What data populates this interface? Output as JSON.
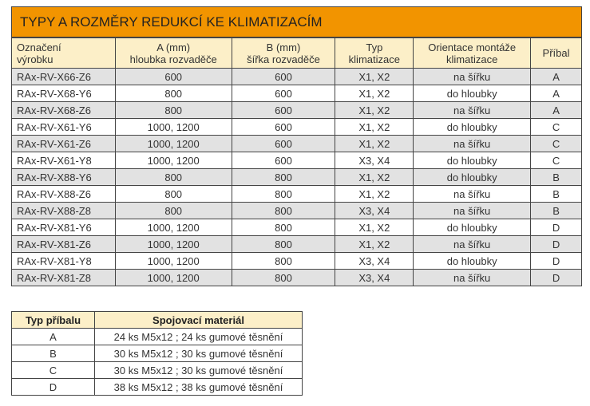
{
  "title": "TYPY A ROZMĚRY REDUKCÍ KE KLIMATIZACÍM",
  "headers": [
    {
      "l1": "Označení",
      "l2": "výrobku"
    },
    {
      "l1": "A (mm)",
      "l2": "hloubka rozvaděče"
    },
    {
      "l1": "B (mm)",
      "l2": "šířka rozvaděče"
    },
    {
      "l1": "Typ",
      "l2": "klimatizace"
    },
    {
      "l1": "Orientace montáže",
      "l2": "klimatizace"
    },
    {
      "l1": "Příbal",
      "l2": ""
    }
  ],
  "rows": [
    [
      "RAx-RV-X66-Z6",
      "600",
      "600",
      "X1, X2",
      "na šířku",
      "A"
    ],
    [
      "RAx-RV-X68-Y6",
      "800",
      "600",
      "X1, X2",
      "do hloubky",
      "A"
    ],
    [
      "RAx-RV-X68-Z6",
      "800",
      "600",
      "X1, X2",
      "na šířku",
      "A"
    ],
    [
      "RAx-RV-X61-Y6",
      "1000, 1200",
      "600",
      "X1, X2",
      "do hloubky",
      "C"
    ],
    [
      "RAx-RV-X61-Z6",
      "1000, 1200",
      "600",
      "X1, X2",
      "na šířku",
      "C"
    ],
    [
      "RAx-RV-X61-Y8",
      "1000, 1200",
      "600",
      "X3, X4",
      "do hloubky",
      "C"
    ],
    [
      "RAx-RV-X88-Y6",
      "800",
      "800",
      "X1, X2",
      "do hloubky",
      "B"
    ],
    [
      "RAx-RV-X88-Z6",
      "800",
      "800",
      "X1, X2",
      "na šířku",
      "B"
    ],
    [
      "RAx-RV-X88-Z8",
      "800",
      "800",
      "X3, X4",
      "na šířku",
      "B"
    ],
    [
      "RAx-RV-X81-Y6",
      "1000, 1200",
      "800",
      "X1, X2",
      "do hloubky",
      "D"
    ],
    [
      "RAx-RV-X81-Z6",
      "1000, 1200",
      "800",
      "X1, X2",
      "na šířku",
      "D"
    ],
    [
      "RAx-RV-X81-Y8",
      "1000, 1200",
      "800",
      "X3, X4",
      "do hloubky",
      "D"
    ],
    [
      "RAx-RV-X81-Z8",
      "1000, 1200",
      "800",
      "X3, X4",
      "na šířku",
      "D"
    ]
  ],
  "packing": {
    "headers": [
      "Typ příbalu",
      "Spojovací materiál"
    ],
    "rows": [
      [
        "A",
        "24 ks M5x12 ; 24 ks gumové těsnění"
      ],
      [
        "B",
        "30 ks M5x12 ; 30 ks gumové těsnění"
      ],
      [
        "C",
        "30 ks M5x12 ; 30 ks gumové těsnění"
      ],
      [
        "D",
        "38 ks M5x12 ; 38 ks gumové těsnění"
      ]
    ]
  },
  "colors": {
    "title_bg": "#f29400",
    "header_bg": "#fcefc8",
    "stripe": "#e2e2e2"
  }
}
